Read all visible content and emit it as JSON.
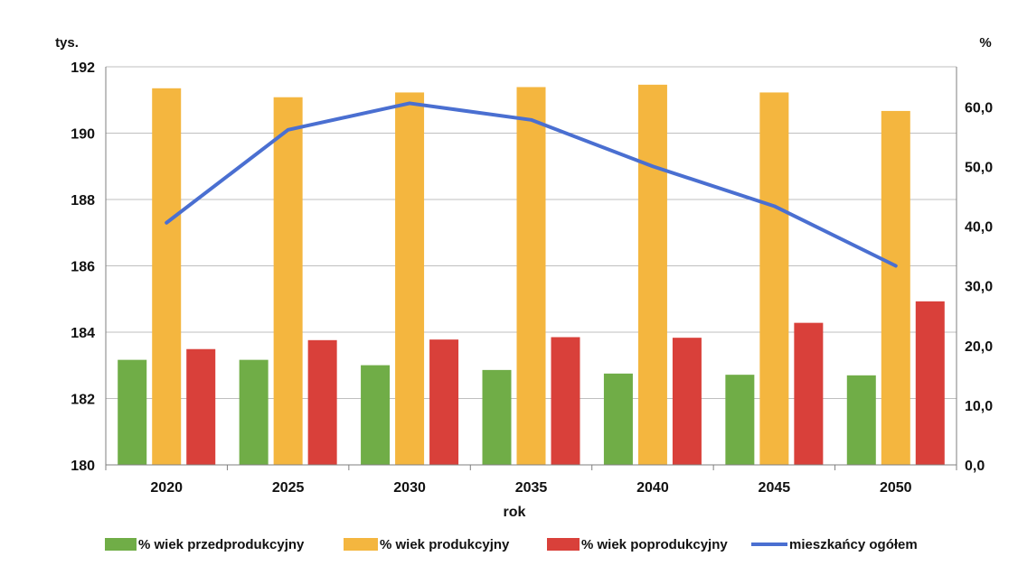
{
  "chart_data": {
    "type": "bar",
    "categories": [
      "2020",
      "2025",
      "2030",
      "2035",
      "2040",
      "2045",
      "2050"
    ],
    "xlabel": "rok",
    "left_axis": {
      "unit": "tys.",
      "min": 180,
      "max": 192,
      "ticks": [
        "180",
        "182",
        "184",
        "186",
        "188",
        "190",
        "192"
      ]
    },
    "right_axis": {
      "unit": "%",
      "min": 0,
      "max": 66.7,
      "ticks": [
        "0,0",
        "10,0",
        "20,0",
        "30,0",
        "40,0",
        "50,0",
        "60,0"
      ]
    },
    "series": [
      {
        "name": "% wiek przedprodukcyjny",
        "type": "bar",
        "axis": "right",
        "color": "#70ad47",
        "values": [
          17.6,
          17.6,
          16.7,
          15.9,
          15.3,
          15.1,
          15.0
        ]
      },
      {
        "name": "% wiek produkcyjny",
        "type": "bar",
        "axis": "right",
        "color": "#f4b63f",
        "values": [
          63.1,
          61.6,
          62.4,
          63.3,
          63.7,
          62.4,
          59.3
        ]
      },
      {
        "name": "% wiek poprodukcyjny",
        "type": "bar",
        "axis": "right",
        "color": "#d9403a",
        "values": [
          19.4,
          20.9,
          21.0,
          21.4,
          21.3,
          23.8,
          27.4
        ]
      },
      {
        "name": "mieszkańcy ogółem",
        "type": "line",
        "axis": "left",
        "color": "#4a6fd1",
        "values": [
          187.3,
          190.1,
          190.9,
          190.4,
          189.0,
          187.8,
          186.0
        ]
      }
    ],
    "grid": true,
    "legend": "bottom"
  }
}
